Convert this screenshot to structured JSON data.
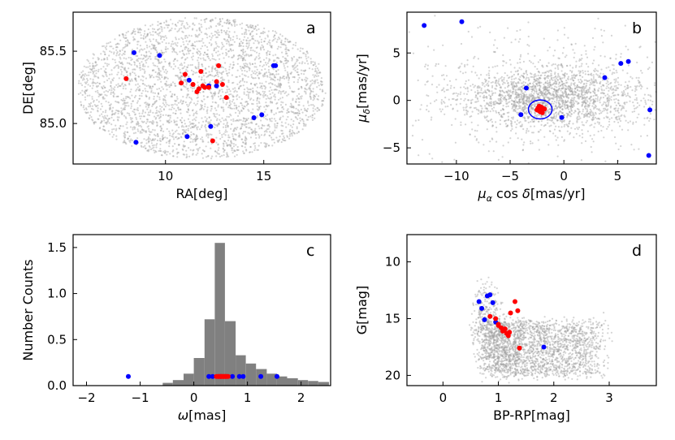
{
  "chart_data": [
    {
      "panel": "a",
      "type": "scatter",
      "letter": "a",
      "xlabel": "RA[deg]",
      "ylabel": "DE[deg]",
      "xlim": [
        5.3,
        18.4
      ],
      "ylim": [
        84.72,
        85.77
      ],
      "xticks": [
        10,
        15
      ],
      "yticks": [
        85.0,
        85.5
      ],
      "ytick_labels": [
        "85.0",
        "85.5"
      ],
      "background": {
        "name": "field stars",
        "color": "#a0a0a0",
        "center": [
          11.85,
          85.245
        ],
        "radius": [
          6.35,
          0.49
        ],
        "count": 3200
      },
      "series": [
        {
          "color": "#0000ff",
          "x": [
            8.4,
            9.7,
            15.5,
            15.6,
            11.2,
            12.2,
            12.6,
            14.9,
            14.5,
            12.3,
            11.1,
            8.5
          ],
          "y": [
            85.49,
            85.47,
            85.4,
            85.4,
            85.3,
            85.26,
            85.26,
            85.06,
            85.04,
            84.98,
            84.91,
            84.87
          ]
        },
        {
          "color": "#ff0000",
          "x": [
            8.0,
            11.0,
            10.8,
            11.4,
            11.6,
            12.0,
            12.2,
            11.8,
            12.7,
            12.9,
            13.1,
            11.9,
            11.7,
            12.6,
            12.4
          ],
          "y": [
            85.31,
            85.34,
            85.28,
            85.27,
            85.22,
            85.25,
            85.25,
            85.36,
            85.4,
            85.27,
            85.18,
            85.26,
            85.24,
            85.29,
            84.88
          ]
        }
      ]
    },
    {
      "panel": "b",
      "type": "scatter",
      "letter": "b",
      "xlabel": "μαcosδ[mas/yr]",
      "ylabel": "μδ[mas/yr]",
      "xlim": [
        -14.6,
        8.6
      ],
      "ylim": [
        -6.7,
        9.3
      ],
      "xticks": [
        -10,
        -5,
        0,
        5
      ],
      "xtick_labels": [
        "−10",
        "−5",
        "0",
        "5"
      ],
      "yticks": [
        -5,
        0,
        5
      ],
      "ytick_labels": [
        "−5",
        "0",
        "5"
      ],
      "background": {
        "name": "field stars",
        "color": "#a0a0a0",
        "center": [
          -1.5,
          0.3
        ],
        "radius": [
          4.5,
          1.9
        ],
        "count": 2600
      },
      "series": [
        {
          "color": "#0000ff",
          "x": [
            -13.0,
            -9.5,
            6.0,
            5.3,
            3.8,
            -3.5,
            -4.0,
            8.0,
            -0.2,
            7.9
          ],
          "y": [
            7.9,
            8.3,
            4.1,
            3.9,
            2.4,
            1.3,
            -1.5,
            -1.0,
            -1.8,
            -5.8
          ]
        },
        {
          "color": "#ff0000",
          "x": [
            -2.4,
            -2.2,
            -2.0,
            -2.3,
            -2.1,
            -1.9,
            -2.5,
            -2.2,
            -2.0,
            -2.3,
            -1.8,
            -2.1,
            -2.4,
            -2.2,
            -2.0
          ],
          "y": [
            -0.9,
            -0.8,
            -1.0,
            -1.1,
            -0.7,
            -0.9,
            -1.0,
            -1.2,
            -0.8,
            -0.6,
            -0.9,
            -1.0,
            -0.8,
            -1.1,
            -1.3
          ]
        }
      ],
      "ellipse": {
        "color": "#0000ff",
        "center": [
          -2.2,
          -0.95
        ],
        "radius": [
          1.1,
          1.0
        ]
      }
    },
    {
      "panel": "c",
      "type": "bar",
      "letter": "c",
      "xlabel": "ω[mas]",
      "ylabel": "Number Counts",
      "xlim": [
        -2.25,
        2.55
      ],
      "ylim": [
        0,
        1.64
      ],
      "xticks": [
        -2,
        -1,
        0,
        1,
        2
      ],
      "xtick_labels": [
        "−2",
        "−1",
        "0",
        "1",
        "2"
      ],
      "yticks": [
        0.0,
        0.5,
        1.0,
        1.5
      ],
      "ytick_labels": [
        "0.0",
        "0.5",
        "1.0",
        "1.5"
      ],
      "histogram": {
        "color": "#808080",
        "bin_edges": [
          -0.58,
          -0.39,
          -0.19,
          0.0,
          0.2,
          0.39,
          0.58,
          0.78,
          0.97,
          1.16,
          1.36,
          1.55,
          1.74,
          1.94,
          2.13,
          2.32,
          2.52
        ],
        "counts": [
          0.03,
          0.06,
          0.13,
          0.3,
          0.72,
          1.55,
          0.7,
          0.33,
          0.24,
          0.18,
          0.13,
          0.1,
          0.08,
          0.06,
          0.05,
          0.04
        ]
      },
      "series": [
        {
          "color": "#0000ff",
          "x": [
            -1.22,
            0.28,
            0.35,
            0.5,
            0.72,
            0.85,
            0.92,
            1.25,
            1.55
          ],
          "y": [
            0.1,
            0.1,
            0.1,
            0.1,
            0.1,
            0.1,
            0.1,
            0.1,
            0.1
          ]
        },
        {
          "color": "#ff0000",
          "x": [
            0.42,
            0.46,
            0.48,
            0.5,
            0.52,
            0.54,
            0.56,
            0.58,
            0.6,
            0.62,
            0.64,
            0.45,
            0.55,
            0.51,
            0.59
          ],
          "y": [
            0.1,
            0.1,
            0.1,
            0.1,
            0.1,
            0.1,
            0.1,
            0.1,
            0.1,
            0.1,
            0.1,
            0.1,
            0.1,
            0.1,
            0.1
          ]
        }
      ]
    },
    {
      "panel": "d",
      "type": "scatter",
      "letter": "d",
      "xlabel": "BP-RP[mag]",
      "ylabel": "G[mag]",
      "xlim": [
        -0.65,
        3.85
      ],
      "ylim": [
        7.6,
        20.9
      ],
      "y_inverted": true,
      "xticks": [
        0,
        1,
        2,
        3
      ],
      "yticks": [
        10,
        15,
        20
      ],
      "background": {
        "name": "field stars",
        "color": "#a0a0a0",
        "count": 2600
      },
      "series": [
        {
          "color": "#0000ff",
          "x": [
            0.85,
            0.8,
            0.65,
            0.9,
            0.7,
            0.75,
            0.95,
            1.82
          ],
          "y": [
            12.9,
            13.0,
            13.5,
            13.6,
            14.1,
            15.1,
            15.3,
            17.5
          ]
        },
        {
          "color": "#ff0000",
          "x": [
            1.3,
            0.85,
            1.0,
            1.05,
            1.1,
            1.15,
            1.18,
            1.2,
            1.22,
            1.35,
            1.0,
            0.95,
            1.08,
            1.12,
            1.38
          ],
          "y": [
            13.5,
            14.8,
            15.5,
            15.8,
            16.0,
            16.3,
            16.5,
            16.2,
            14.5,
            14.3,
            15.6,
            15.0,
            16.1,
            15.9,
            17.6
          ]
        }
      ]
    }
  ]
}
